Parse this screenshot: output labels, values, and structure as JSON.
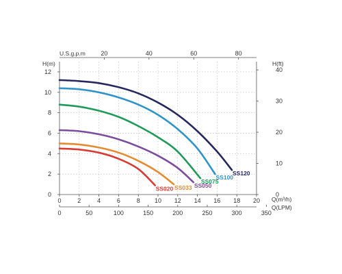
{
  "chart_data": {
    "type": "line",
    "left_axis": {
      "label": "H(m)",
      "ticks": [
        0,
        2,
        4,
        6,
        8,
        10,
        12
      ],
      "range": [
        0,
        13
      ]
    },
    "right_axis": {
      "label": "H(ft)",
      "ticks": [
        0,
        10,
        20,
        30,
        40
      ]
    },
    "bottom_axis": {
      "label": "Q(m³/h)",
      "ticks": [
        0,
        2,
        4,
        6,
        8,
        10,
        12,
        14,
        16,
        18,
        20
      ],
      "range": [
        0,
        20
      ]
    },
    "bottom_axis_2": {
      "label": "Q(LPM)",
      "ticks": [
        0,
        50,
        100,
        150,
        200,
        250,
        300,
        350
      ]
    },
    "top_axis": {
      "label": "U.S.g.p.m",
      "ticks": [
        20,
        40,
        60,
        80
      ]
    },
    "grid": true,
    "series": [
      {
        "name": "SS120",
        "color": "#26285e",
        "x": [
          0,
          2,
          4,
          6,
          8,
          10,
          12,
          14,
          16,
          17.5
        ],
        "y": [
          11.2,
          11.1,
          10.9,
          10.5,
          9.9,
          9.0,
          7.8,
          6.2,
          4.2,
          2.4
        ]
      },
      {
        "name": "SS100",
        "color": "#2f94c8",
        "x": [
          0,
          2,
          4,
          6,
          8,
          10,
          12,
          14,
          15.8
        ],
        "y": [
          10.4,
          10.3,
          10.0,
          9.5,
          8.8,
          7.8,
          6.4,
          4.5,
          2.0
        ]
      },
      {
        "name": "SS075",
        "color": "#1f9a5a",
        "x": [
          0,
          2,
          4,
          6,
          8,
          10,
          12,
          14.3
        ],
        "y": [
          8.8,
          8.6,
          8.2,
          7.6,
          6.7,
          5.6,
          4.2,
          1.6
        ]
      },
      {
        "name": "SS050",
        "color": "#7b4d9c",
        "x": [
          0,
          2,
          4,
          6,
          8,
          10,
          12,
          13.6
        ],
        "y": [
          6.3,
          6.2,
          5.9,
          5.4,
          4.7,
          3.8,
          2.6,
          1.2
        ]
      },
      {
        "name": "SS033",
        "color": "#e58a2e",
        "x": [
          0,
          2,
          4,
          6,
          8,
          10,
          11.6
        ],
        "y": [
          5.0,
          4.9,
          4.6,
          4.1,
          3.3,
          2.2,
          1.0
        ]
      },
      {
        "name": "SS020",
        "color": "#d83a34",
        "x": [
          0,
          2,
          4,
          6,
          8,
          9.7
        ],
        "y": [
          4.5,
          4.4,
          4.1,
          3.5,
          2.5,
          0.9
        ]
      }
    ]
  }
}
